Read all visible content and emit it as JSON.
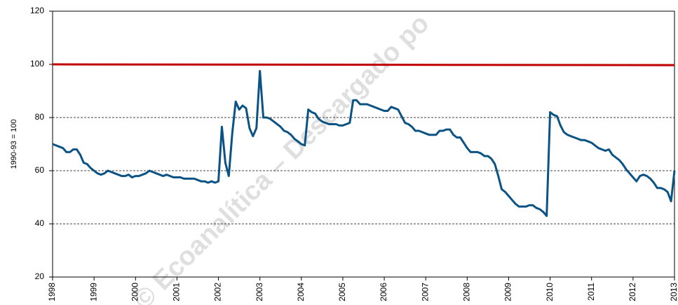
{
  "chart_data": {
    "type": "line",
    "y_label": "1990-93 = 100",
    "watermark": "© Ecoanalítica – Descargado po",
    "xlim": [
      1998,
      2013
    ],
    "xticks": [
      1998,
      1999,
      2000,
      2001,
      2002,
      2003,
      2004,
      2005,
      2006,
      2007,
      2008,
      2009,
      2010,
      2011,
      2012,
      2013
    ],
    "ylim": [
      20,
      120
    ],
    "yticks": [
      20,
      40,
      60,
      80,
      100,
      120
    ],
    "grid": true,
    "series": [
      {
        "color": "#0b5384",
        "x": [
          1998,
          1998.083,
          1998.167,
          1998.25,
          1998.333,
          1998.417,
          1998.5,
          1998.583,
          1998.667,
          1998.75,
          1998.833,
          1998.917,
          1999,
          1999.083,
          1999.167,
          1999.25,
          1999.333,
          1999.417,
          1999.5,
          1999.583,
          1999.667,
          1999.75,
          1999.833,
          1999.917,
          2000,
          2000.083,
          2000.167,
          2000.25,
          2000.333,
          2000.417,
          2000.5,
          2000.583,
          2000.667,
          2000.75,
          2000.833,
          2000.917,
          2001,
          2001.083,
          2001.167,
          2001.25,
          2001.333,
          2001.417,
          2001.5,
          2001.583,
          2001.667,
          2001.75,
          2001.833,
          2001.917,
          2002,
          2002.083,
          2002.167,
          2002.25,
          2002.333,
          2002.417,
          2002.5,
          2002.583,
          2002.667,
          2002.75,
          2002.833,
          2002.917,
          2003,
          2003.083,
          2003.167,
          2003.25,
          2003.333,
          2003.417,
          2003.5,
          2003.583,
          2003.667,
          2003.75,
          2003.833,
          2003.917,
          2004,
          2004.083,
          2004.167,
          2004.25,
          2004.333,
          2004.417,
          2004.5,
          2004.583,
          2004.667,
          2004.75,
          2004.833,
          2004.917,
          2005,
          2005.083,
          2005.167,
          2005.25,
          2005.333,
          2005.417,
          2005.5,
          2005.583,
          2005.667,
          2005.75,
          2005.833,
          2005.917,
          2006,
          2006.083,
          2006.167,
          2006.25,
          2006.333,
          2006.417,
          2006.5,
          2006.583,
          2006.667,
          2006.75,
          2006.833,
          2006.917,
          2007,
          2007.083,
          2007.167,
          2007.25,
          2007.333,
          2007.417,
          2007.5,
          2007.583,
          2007.667,
          2007.75,
          2007.833,
          2007.917,
          2008,
          2008.083,
          2008.167,
          2008.25,
          2008.333,
          2008.417,
          2008.5,
          2008.583,
          2008.667,
          2008.75,
          2008.833,
          2008.917,
          2009,
          2009.083,
          2009.167,
          2009.25,
          2009.333,
          2009.417,
          2009.5,
          2009.583,
          2009.667,
          2009.75,
          2009.833,
          2009.917,
          2010,
          2010.083,
          2010.167,
          2010.25,
          2010.333,
          2010.417,
          2010.5,
          2010.583,
          2010.667,
          2010.75,
          2010.833,
          2010.917,
          2011,
          2011.083,
          2011.167,
          2011.25,
          2011.333,
          2011.417,
          2011.5,
          2011.583,
          2011.667,
          2011.75,
          2011.833,
          2011.917,
          2012,
          2012.083,
          2012.167,
          2012.25,
          2012.333,
          2012.417,
          2012.5,
          2012.583,
          2012.667,
          2012.75,
          2012.833,
          2012.917,
          2013
        ],
        "values": [
          70,
          69.5,
          69,
          68.5,
          67,
          67,
          68,
          68,
          66,
          63,
          62.5,
          61,
          60,
          59,
          58.5,
          59,
          60,
          59.5,
          59,
          58.5,
          58,
          58,
          58.5,
          57.5,
          58,
          58,
          58.5,
          59,
          60,
          59.5,
          59,
          58.5,
          58,
          58.5,
          58,
          57.5,
          57.5,
          57.5,
          57,
          57,
          57,
          57,
          56.5,
          56,
          56,
          55.5,
          56,
          55.5,
          56,
          76.5,
          63,
          58,
          74,
          86,
          83,
          84.5,
          83.5,
          76,
          73,
          76,
          97.5,
          80,
          80,
          79.5,
          78.5,
          77.5,
          76.5,
          75,
          74.5,
          73.5,
          72,
          71,
          70,
          69.5,
          83,
          82,
          81.5,
          79.5,
          78.5,
          78,
          77.5,
          77.5,
          77.5,
          77,
          77,
          77.5,
          78,
          86.5,
          86.5,
          85,
          85,
          85,
          84.5,
          84,
          83.5,
          83,
          82.5,
          82.5,
          84,
          83.5,
          83,
          80.5,
          78,
          77.5,
          76.5,
          75,
          75,
          74.5,
          74,
          73.5,
          73.5,
          73.5,
          75,
          75,
          75.5,
          75.5,
          73.5,
          72.5,
          72.5,
          70.5,
          68.5,
          67,
          67,
          67,
          66.5,
          65.5,
          65.5,
          64.5,
          62.5,
          58,
          53,
          52,
          50.5,
          49,
          47.5,
          46.5,
          46.5,
          46.5,
          47,
          47,
          46,
          45.5,
          44.5,
          43,
          82,
          81,
          80.5,
          77,
          74.5,
          73.5,
          73,
          72.5,
          72,
          71.5,
          71.5,
          71,
          70.5,
          69.5,
          68.5,
          68,
          67.5,
          68,
          66,
          65,
          64,
          62.5,
          60.5,
          59,
          57.5,
          56,
          58,
          58.5,
          58,
          57,
          55.5,
          53.5,
          53.5,
          53,
          52,
          48.5,
          60
        ]
      },
      {
        "color": "#c00000",
        "x": [
          1998,
          2013
        ],
        "values": [
          100,
          99.7
        ]
      }
    ]
  }
}
